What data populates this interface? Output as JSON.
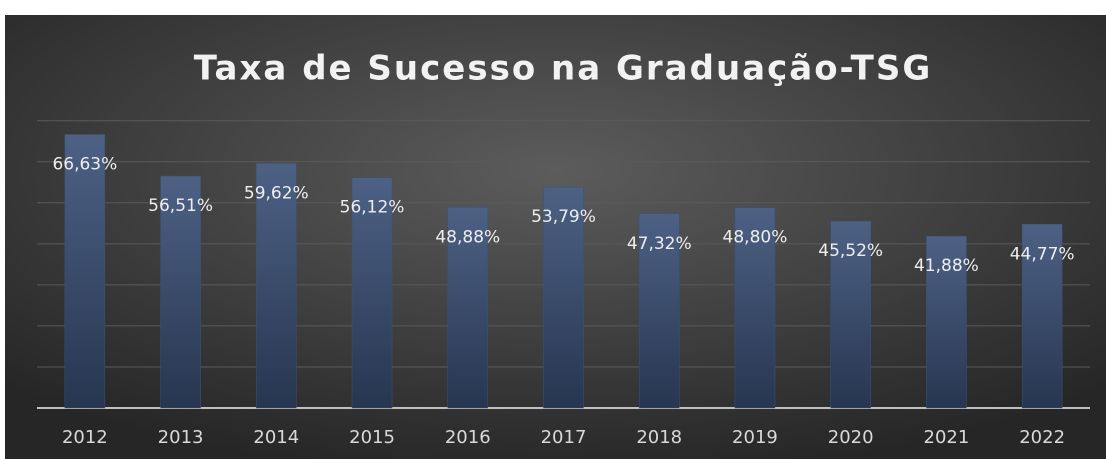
{
  "chart_data": {
    "type": "bar",
    "title": "Taxa de Sucesso na Graduação-TSG",
    "categories": [
      "2012",
      "2013",
      "2014",
      "2015",
      "2016",
      "2017",
      "2018",
      "2019",
      "2020",
      "2021",
      "2022"
    ],
    "values": [
      66.63,
      56.51,
      59.62,
      56.12,
      48.88,
      53.79,
      47.32,
      48.8,
      45.52,
      41.88,
      44.77
    ],
    "value_labels": [
      "66,63%",
      "56,51%",
      "59,62%",
      "56,12%",
      "48,88%",
      "53,79%",
      "47,32%",
      "48,80%",
      "45,52%",
      "41,88%",
      "44,77%"
    ],
    "color": "#3f5274",
    "ylim": [
      0,
      70
    ],
    "yticks": [
      0,
      10,
      20,
      30,
      40,
      50,
      60,
      70
    ],
    "grid": true
  }
}
